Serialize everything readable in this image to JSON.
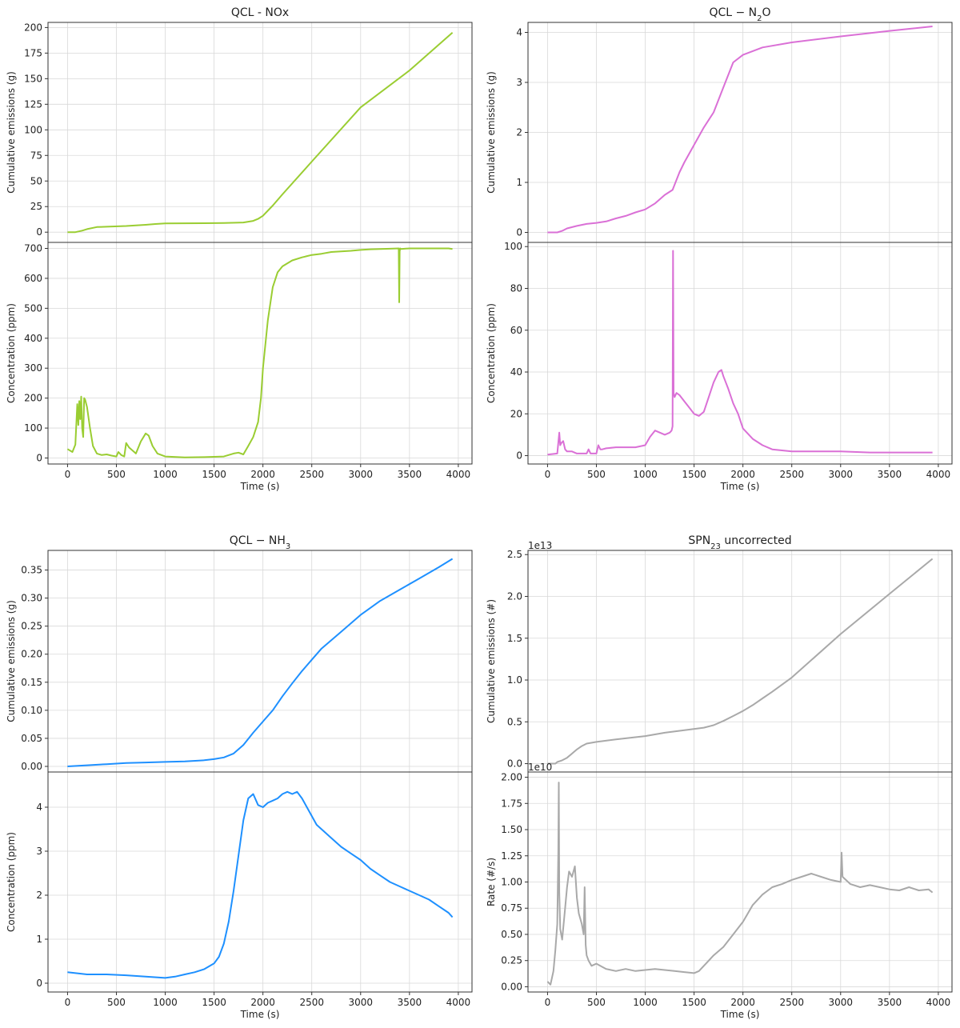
{
  "chart_data": [
    {
      "panel": "NOx",
      "type": "line",
      "title": "QCL - NOx",
      "color": "#9ACD32",
      "xlabel": "Time (s)",
      "xlim": [
        0,
        4000
      ],
      "xticks": [
        "0",
        "500",
        "1000",
        "1500",
        "2000",
        "2500",
        "3000",
        "3500",
        "4000"
      ],
      "grid": true,
      "subplots": [
        {
          "ylabel": "Cumulative emissions (g)",
          "ylim": [
            -10,
            205
          ],
          "yticks": [
            "0",
            "25",
            "50",
            "75",
            "100",
            "125",
            "150",
            "175",
            "200"
          ],
          "series": [
            {
              "x": [
                0,
                80,
                150,
                200,
                300,
                400,
                600,
                800,
                900,
                1000,
                1200,
                1400,
                1600,
                1800,
                1900,
                1950,
                2000,
                2100,
                2200,
                2500,
                3000,
                3500,
                3940
              ],
              "y": [
                0,
                0,
                1.5,
                3,
                5,
                5.3,
                6,
                7.2,
                8,
                8.5,
                8.7,
                8.8,
                9,
                9.5,
                11,
                13,
                16,
                26,
                37,
                69,
                122,
                158,
                195
              ]
            }
          ]
        },
        {
          "ylabel": "Concentration (ppm)",
          "ylim": [
            -20,
            720
          ],
          "yticks": [
            "0",
            "100",
            "200",
            "300",
            "400",
            "500",
            "600",
            "700"
          ],
          "series": [
            {
              "x": [
                0,
                50,
                80,
                100,
                110,
                120,
                130,
                140,
                150,
                160,
                170,
                180,
                200,
                230,
                260,
                300,
                350,
                400,
                450,
                500,
                520,
                550,
                580,
                600,
                630,
                700,
                750,
                800,
                830,
                870,
                920,
                1000,
                1200,
                1400,
                1600,
                1700,
                1750,
                1800,
                1850,
                1900,
                1950,
                1980,
                2000,
                2050,
                2100,
                2150,
                2200,
                2300,
                2400,
                2500,
                2600,
                2700,
                2800,
                2900,
                3000,
                3100,
                3200,
                3300,
                3390,
                3395,
                3400,
                3405,
                3410,
                3500,
                3600,
                3700,
                3800,
                3900,
                3940
              ],
              "y": [
                30,
                20,
                45,
                180,
                110,
                190,
                130,
                205,
                100,
                70,
                200,
                195,
                170,
                100,
                40,
                15,
                10,
                12,
                8,
                5,
                20,
                10,
                5,
                50,
                35,
                15,
                55,
                82,
                75,
                40,
                15,
                5,
                2,
                3,
                5,
                15,
                18,
                12,
                40,
                70,
                120,
                200,
                300,
                460,
                570,
                620,
                640,
                660,
                670,
                678,
                682,
                688,
                690,
                692,
                695,
                697,
                698,
                699,
                700,
                520,
                690,
                700,
                698,
                700,
                700,
                700,
                700,
                700,
                698
              ]
            }
          ]
        }
      ]
    },
    {
      "panel": "N2O",
      "type": "line",
      "title_main": "QCL − N",
      "title_sub": "2",
      "title_tail": "O",
      "color": "#DA70D6",
      "xlabel": "Time (s)",
      "xlim": [
        0,
        4000
      ],
      "xticks": [
        "0",
        "500",
        "1000",
        "1500",
        "2000",
        "2500",
        "3000",
        "3500",
        "4000"
      ],
      "grid": true,
      "subplots": [
        {
          "ylabel": "Cumulative emissions (g)",
          "ylim": [
            -0.2,
            4.2
          ],
          "yticks": [
            "0",
            "1",
            "2",
            "3",
            "4"
          ],
          "series": [
            {
              "x": [
                0,
                100,
                150,
                200,
                300,
                400,
                500,
                600,
                700,
                800,
                900,
                1000,
                1100,
                1200,
                1280,
                1350,
                1400,
                1500,
                1600,
                1700,
                1800,
                1900,
                2000,
                2200,
                2500,
                3000,
                3500,
                3940
              ],
              "y": [
                0,
                0,
                0.03,
                0.08,
                0.13,
                0.17,
                0.19,
                0.22,
                0.28,
                0.33,
                0.4,
                0.46,
                0.58,
                0.75,
                0.85,
                1.2,
                1.4,
                1.75,
                2.1,
                2.4,
                2.9,
                3.4,
                3.55,
                3.7,
                3.8,
                3.92,
                4.03,
                4.12
              ]
            }
          ]
        },
        {
          "ylabel": "Concentration (ppm)",
          "ylim": [
            -4,
            102
          ],
          "yticks": [
            "0",
            "20",
            "40",
            "60",
            "80",
            "100"
          ],
          "series": [
            {
              "x": [
                0,
                100,
                120,
                130,
                140,
                160,
                180,
                200,
                250,
                300,
                400,
                420,
                440,
                460,
                500,
                520,
                540,
                560,
                600,
                700,
                800,
                900,
                1000,
                1050,
                1100,
                1150,
                1200,
                1250,
                1270,
                1280,
                1285,
                1290,
                1300,
                1320,
                1350,
                1400,
                1450,
                1500,
                1550,
                1600,
                1650,
                1700,
                1750,
                1780,
                1800,
                1850,
                1900,
                1950,
                2000,
                2100,
                2200,
                2300,
                2500,
                2700,
                3000,
                3300,
                3500,
                3700,
                3940
              ],
              "y": [
                0.5,
                1,
                11,
                5,
                6,
                7,
                3,
                2,
                2,
                1,
                1,
                3,
                1,
                1,
                1,
                5,
                3,
                3,
                3.5,
                4,
                4,
                4,
                5,
                9,
                12,
                11,
                10,
                11,
                12,
                14,
                98,
                30,
                28,
                30,
                29,
                26,
                23,
                20,
                19,
                21,
                28,
                35,
                40,
                41,
                38,
                32,
                25,
                20,
                13,
                8,
                5,
                3,
                2,
                2,
                2,
                1.5,
                1.5,
                1.5,
                1.5
              ]
            }
          ]
        }
      ]
    },
    {
      "panel": "NH3",
      "type": "line",
      "title_main": "QCL − NH",
      "title_sub": "3",
      "title_tail": "",
      "color": "#1E90FF",
      "xlabel": "Time (s)",
      "xlim": [
        0,
        4000
      ],
      "xticks": [
        "0",
        "500",
        "1000",
        "1500",
        "2000",
        "2500",
        "3000",
        "3500",
        "4000"
      ],
      "grid": true,
      "subplots": [
        {
          "ylabel": "Cumulative emissions (g)",
          "ylim": [
            -0.01,
            0.385
          ],
          "yticks": [
            "0.00",
            "0.05",
            "0.10",
            "0.15",
            "0.20",
            "0.25",
            "0.30",
            "0.35"
          ],
          "series": [
            {
              "x": [
                0,
                200,
                400,
                600,
                800,
                1000,
                1200,
                1400,
                1500,
                1600,
                1700,
                1800,
                1900,
                2000,
                2100,
                2200,
                2300,
                2400,
                2500,
                2600,
                2800,
                3000,
                3200,
                3400,
                3600,
                3800,
                3940
              ],
              "y": [
                0,
                0.002,
                0.004,
                0.006,
                0.007,
                0.008,
                0.009,
                0.011,
                0.013,
                0.016,
                0.023,
                0.038,
                0.06,
                0.08,
                0.1,
                0.125,
                0.148,
                0.17,
                0.19,
                0.21,
                0.24,
                0.27,
                0.295,
                0.315,
                0.335,
                0.355,
                0.37
              ]
            }
          ]
        },
        {
          "ylabel": "Concentration (ppm)",
          "ylim": [
            -0.2,
            4.8
          ],
          "yticks": [
            "0",
            "1",
            "2",
            "3",
            "4"
          ],
          "series": [
            {
              "x": [
                0,
                200,
                400,
                600,
                800,
                1000,
                1100,
                1200,
                1300,
                1400,
                1500,
                1550,
                1600,
                1650,
                1700,
                1750,
                1800,
                1850,
                1900,
                1950,
                2000,
                2050,
                2100,
                2150,
                2200,
                2250,
                2300,
                2350,
                2400,
                2450,
                2500,
                2550,
                2600,
                2700,
                2800,
                2900,
                3000,
                3100,
                3200,
                3300,
                3400,
                3500,
                3600,
                3700,
                3800,
                3900,
                3940
              ],
              "y": [
                0.25,
                0.2,
                0.2,
                0.18,
                0.15,
                0.12,
                0.15,
                0.2,
                0.25,
                0.32,
                0.45,
                0.6,
                0.9,
                1.4,
                2.1,
                2.9,
                3.7,
                4.2,
                4.3,
                4.05,
                4.0,
                4.1,
                4.15,
                4.2,
                4.3,
                4.35,
                4.3,
                4.35,
                4.2,
                4.0,
                3.8,
                3.6,
                3.5,
                3.3,
                3.1,
                2.95,
                2.8,
                2.6,
                2.45,
                2.3,
                2.2,
                2.1,
                2.0,
                1.9,
                1.75,
                1.6,
                1.5
              ]
            }
          ]
        }
      ]
    },
    {
      "panel": "SPN23",
      "type": "line",
      "title_main": "SPN",
      "title_sub": "23",
      "title_tail": " uncorrected",
      "color": "#A9A9A9",
      "xlabel": "Time (s)",
      "xlim": [
        0,
        4000
      ],
      "xticks": [
        "0",
        "500",
        "1000",
        "1500",
        "2000",
        "2500",
        "3000",
        "3500",
        "4000"
      ],
      "grid": true,
      "subplots": [
        {
          "ylabel": "Cumulative emissions (#)",
          "offset": "1e13",
          "ylim": [
            -0.1,
            2.55
          ],
          "yticks": [
            "0.0",
            "0.5",
            "1.0",
            "1.5",
            "2.0",
            "2.5"
          ],
          "series": [
            {
              "x": [
                0,
                80,
                100,
                150,
                200,
                250,
                300,
                350,
                400,
                500,
                700,
                1000,
                1200,
                1400,
                1600,
                1700,
                1800,
                1900,
                2000,
                2100,
                2200,
                2300,
                2500,
                3000,
                3500,
                3940
              ],
              "y": [
                0,
                0,
                0.02,
                0.04,
                0.07,
                0.12,
                0.17,
                0.21,
                0.24,
                0.26,
                0.29,
                0.33,
                0.37,
                0.4,
                0.43,
                0.46,
                0.51,
                0.57,
                0.63,
                0.7,
                0.78,
                0.86,
                1.03,
                1.55,
                2.03,
                2.45
              ]
            }
          ]
        },
        {
          "ylabel": "Rate (#/s)",
          "offset": "1e10",
          "ylim": [
            -0.05,
            2.05
          ],
          "yticks": [
            "0.00",
            "0.25",
            "0.50",
            "0.75",
            "1.00",
            "1.25",
            "1.50",
            "1.75",
            "2.00"
          ],
          "series": [
            {
              "x": [
                0,
                30,
                60,
                80,
                100,
                110,
                115,
                120,
                130,
                150,
                180,
                200,
                220,
                250,
                280,
                300,
                320,
                350,
                370,
                380,
                390,
                400,
                420,
                450,
                500,
                600,
                700,
                800,
                900,
                1000,
                1100,
                1200,
                1300,
                1400,
                1500,
                1550,
                1600,
                1700,
                1800,
                1900,
                2000,
                2100,
                2200,
                2300,
                2400,
                2500,
                2600,
                2700,
                2800,
                2900,
                3000,
                3010,
                3020,
                3100,
                3200,
                3300,
                3400,
                3500,
                3600,
                3700,
                3800,
                3900,
                3940
              ],
              "y": [
                0.05,
                0.02,
                0.15,
                0.35,
                0.6,
                1.3,
                1.95,
                0.9,
                0.55,
                0.45,
                0.75,
                0.95,
                1.1,
                1.05,
                1.15,
                0.85,
                0.7,
                0.6,
                0.5,
                0.95,
                0.4,
                0.3,
                0.25,
                0.2,
                0.22,
                0.17,
                0.15,
                0.17,
                0.15,
                0.16,
                0.17,
                0.16,
                0.15,
                0.14,
                0.13,
                0.15,
                0.2,
                0.3,
                0.38,
                0.5,
                0.62,
                0.78,
                0.88,
                0.95,
                0.98,
                1.02,
                1.05,
                1.08,
                1.05,
                1.02,
                1.0,
                1.28,
                1.05,
                0.98,
                0.95,
                0.97,
                0.95,
                0.93,
                0.92,
                0.95,
                0.92,
                0.93,
                0.9
              ]
            }
          ]
        }
      ]
    }
  ]
}
